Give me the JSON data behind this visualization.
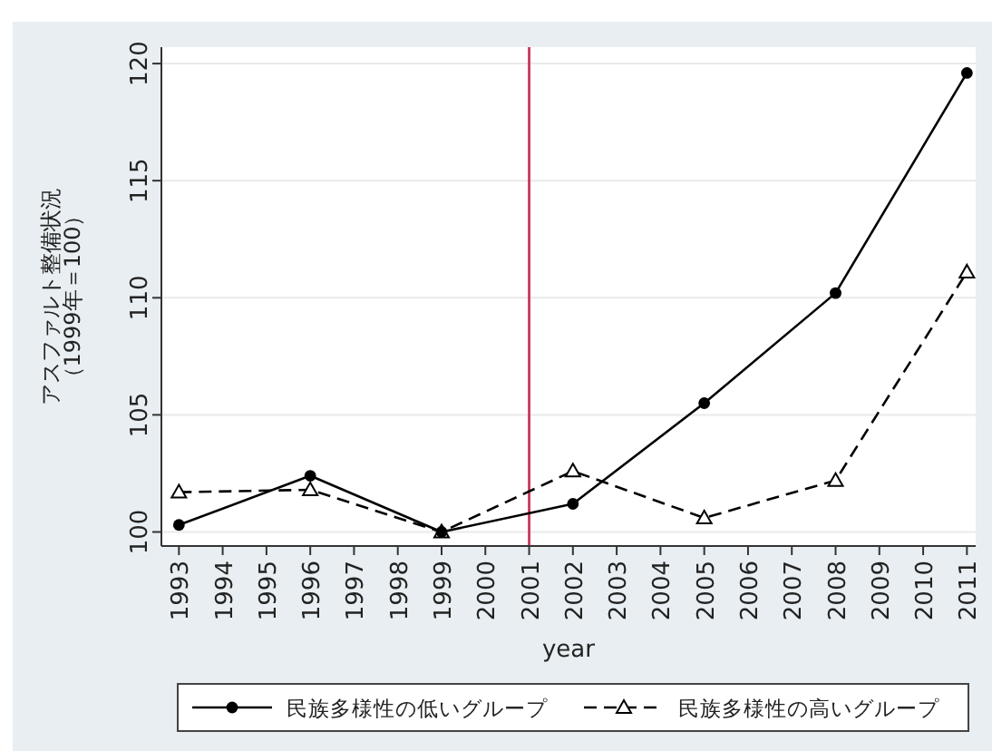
{
  "chart_data": {
    "type": "line",
    "xlabel": "year",
    "ylabel": "アスファルト整備状況（1999年＝100）",
    "x": [
      1993,
      1996,
      1999,
      2002,
      2005,
      2008,
      2011
    ],
    "series": [
      {
        "name": "民族多様性の低いグループ",
        "color": "#000000",
        "marker": "circle",
        "line_style": "solid",
        "values": [
          100.3,
          102.4,
          100,
          101.2,
          105.5,
          110.2,
          119.6
        ]
      },
      {
        "name": "民族多様性の高いグループ",
        "color": "#000000",
        "marker": "triangle",
        "line_style": "dashed",
        "values": [
          101.7,
          101.8,
          100,
          102.6,
          100.6,
          102.2,
          111.1
        ]
      }
    ],
    "xlim": [
      1992.6,
      2011.2
    ],
    "ylim": [
      99.4,
      120.7
    ],
    "xticks": [
      1993,
      1994,
      1995,
      1996,
      1997,
      1998,
      1999,
      2000,
      2001,
      2002,
      2003,
      2004,
      2005,
      2006,
      2007,
      2008,
      2009,
      2010,
      2011
    ],
    "yticks": [
      100,
      105,
      110,
      115,
      120
    ],
    "ref_lines": [
      {
        "axis": "x",
        "value": 2001,
        "color": "#c8365a"
      }
    ],
    "grid": "y",
    "legend": "bottom"
  }
}
